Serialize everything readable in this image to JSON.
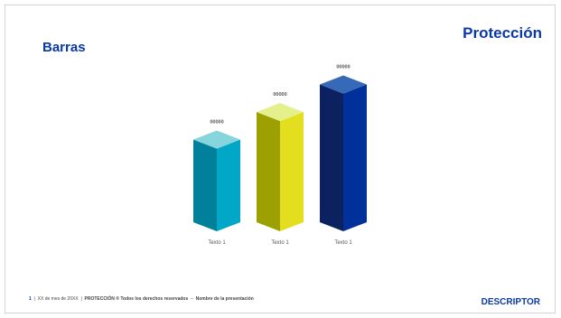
{
  "slide": {
    "title": "Barras",
    "brand": "Protección",
    "descriptor": "DESCRIPTOR",
    "footer": {
      "page": "1",
      "date": "XX de mes de 20XX",
      "copyright": "PROTECCIÓN ® Todos los derechos reservados",
      "presentation": "Nombre de la presentación"
    }
  },
  "chart_data": {
    "type": "bar",
    "style": "3d-column",
    "categories": [
      "Texto 1",
      "Texto 1",
      "Texto 1"
    ],
    "values": [
      3,
      4,
      5
    ],
    "data_labels": [
      "00000",
      "00000",
      "00000"
    ],
    "colors": [
      {
        "front": "#00a7c7",
        "side": "#00809b",
        "top": "#86d5dc"
      },
      {
        "front": "#e3df1f",
        "side": "#9ca000",
        "top": "#e3f08c"
      },
      {
        "front": "#00309a",
        "side": "#0b2160",
        "top": "#3669b8"
      }
    ],
    "title": "",
    "xlabel": "",
    "ylabel": "",
    "grid": false,
    "legend": "none"
  }
}
